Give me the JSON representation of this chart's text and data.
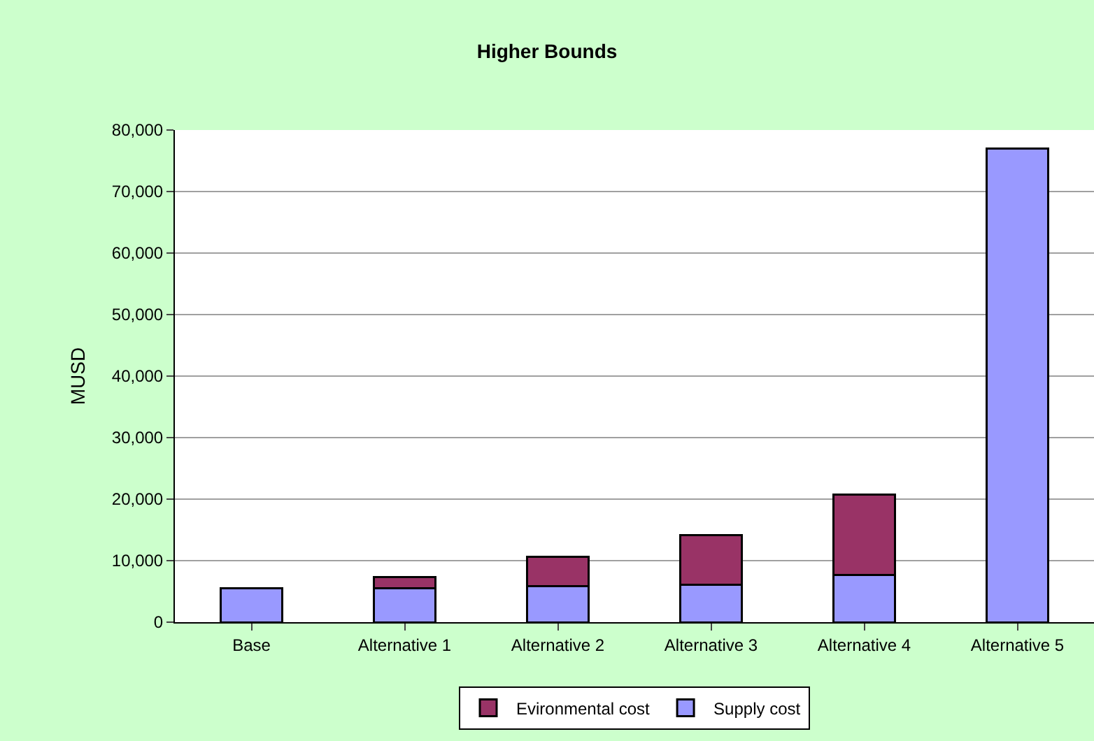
{
  "chart_data": {
    "type": "bar",
    "title": "Higher Bounds",
    "ylabel": "MUSD",
    "categories": [
      "Base",
      "Alternative 1",
      "Alternative 2",
      "Alternative 3",
      "Alternative 4",
      "Alternative 5"
    ],
    "stacked": true,
    "series": [
      {
        "name": "Supply cost",
        "color": "#9999ff",
        "values": [
          5500,
          5500,
          5800,
          6100,
          7700,
          77000
        ]
      },
      {
        "name": "Evironmental cost",
        "color": "#993366",
        "values": [
          null,
          1800,
          4800,
          8100,
          13000,
          null
        ]
      }
    ],
    "ylim": [
      0,
      80000
    ],
    "yticks": [
      {
        "value": 0,
        "label": "0"
      },
      {
        "value": 10000,
        "label": "10,000"
      },
      {
        "value": 20000,
        "label": "20,000"
      },
      {
        "value": 30000,
        "label": "30,000"
      },
      {
        "value": 40000,
        "label": "40,000"
      },
      {
        "value": 50000,
        "label": "50,000"
      },
      {
        "value": 60000,
        "label": "60,000"
      },
      {
        "value": 70000,
        "label": "70,000"
      },
      {
        "value": 80000,
        "label": "80,000"
      }
    ],
    "grid": "y",
    "legend": "bottom"
  }
}
